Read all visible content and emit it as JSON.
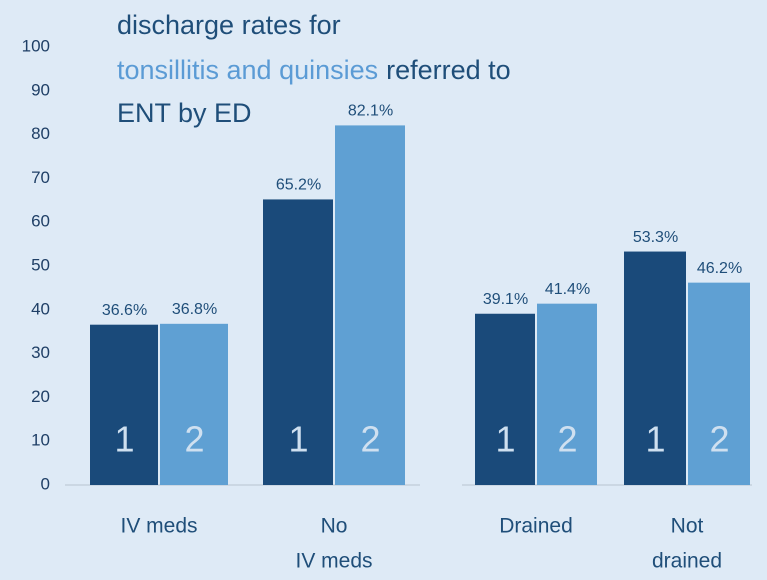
{
  "chart_data": {
    "type": "bar",
    "title_lines": [
      [
        "discharge rates for"
      ],
      [
        "tonsillitis and quinsies",
        "referred to"
      ],
      [
        "ENT by ED"
      ]
    ],
    "title_color": "#1f4e79",
    "title_highlight_color": "#5b9bd5",
    "categories": [
      [
        "IV meds"
      ],
      [
        "No",
        "IV meds"
      ],
      [
        "Drained"
      ],
      [
        "Not",
        "drained"
      ]
    ],
    "series": [
      {
        "name": "1",
        "color": "#1a4a7a",
        "values": [
          36.6,
          65.2,
          39.1,
          53.3
        ],
        "value_labels": [
          "36.6%",
          "65.2%",
          "39.1%",
          "53.3%"
        ]
      },
      {
        "name": "2",
        "color": "#5fa0d3",
        "values": [
          36.8,
          82.1,
          41.4,
          46.2
        ],
        "value_labels": [
          "36.8%",
          "82.1%",
          "41.4%",
          "46.2%"
        ]
      }
    ],
    "ylim": [
      0,
      100
    ],
    "yticks": [
      0,
      10,
      20,
      30,
      40,
      50,
      60,
      70,
      80,
      90,
      100
    ]
  }
}
